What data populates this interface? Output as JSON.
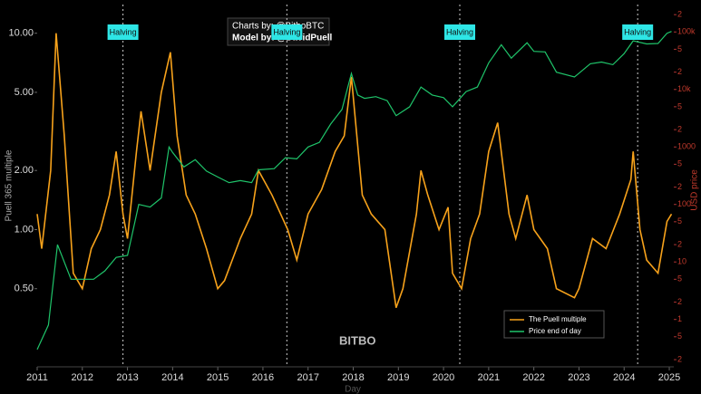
{
  "chart_data": {
    "type": "line",
    "credits": [
      "Charts by: @BitboBTC",
      "Model by: @DavidPuell"
    ],
    "watermark": "BITBO",
    "xlabel": "Day",
    "ylabel": "Puell 365 multiple",
    "y2label": "USD price",
    "log_y": true,
    "log_y2": true,
    "legend": "bottom-right",
    "xlim": [
      2011,
      2025.1
    ],
    "xticks": [
      2011,
      2012,
      2013,
      2014,
      2015,
      2016,
      2017,
      2018,
      2019,
      2020,
      2021,
      2022,
      2023,
      2024,
      2025
    ],
    "ylim": [
      0.2,
      14
    ],
    "yticks": [
      {
        "value": 0.5,
        "label": "0.50"
      },
      {
        "value": 1,
        "label": "1.00"
      },
      {
        "value": 2,
        "label": "2.00"
      },
      {
        "value": 5,
        "label": "5.00"
      },
      {
        "value": 10,
        "label": "10.00"
      }
    ],
    "y2lim": [
      0.15,
      300000
    ],
    "y2ticks": [
      {
        "value": 0.2,
        "label": "2"
      },
      {
        "value": 0.5,
        "label": "5"
      },
      1,
      {
        "value": 2,
        "label": "2"
      },
      {
        "value": 5,
        "label": "5"
      },
      10,
      {
        "value": 20,
        "label": "2"
      },
      {
        "value": 50,
        "label": "5"
      },
      100,
      {
        "value": 200,
        "label": "2"
      },
      {
        "value": 500,
        "label": "5"
      },
      1000,
      {
        "value": 2000,
        "label": "2"
      },
      {
        "value": 5000,
        "label": "5"
      },
      {
        "value": 10000,
        "label": "10k"
      },
      {
        "value": 20000,
        "label": "2"
      },
      {
        "value": 50000,
        "label": "5"
      },
      {
        "value": 100000,
        "label": "100k"
      },
      {
        "value": 200000,
        "label": "2"
      }
    ],
    "annotations": [
      {
        "x": 2012.9,
        "label": "Halving"
      },
      {
        "x": 2016.53,
        "label": "Halving"
      },
      {
        "x": 2020.36,
        "label": "Halving"
      },
      {
        "x": 2024.3,
        "label": "Halving"
      }
    ],
    "series": [
      {
        "name": "The Puell multiple",
        "color": "#f7a21b",
        "x": [
          2011.0,
          2011.1,
          2011.3,
          2011.42,
          2011.6,
          2011.8,
          2012.0,
          2012.2,
          2012.4,
          2012.6,
          2012.75,
          2012.9,
          2013.0,
          2013.2,
          2013.3,
          2013.5,
          2013.75,
          2013.95,
          2014.1,
          2014.3,
          2014.5,
          2014.75,
          2015.0,
          2015.15,
          2015.5,
          2015.75,
          2015.9,
          2016.2,
          2016.55,
          2016.75,
          2017.0,
          2017.3,
          2017.6,
          2017.8,
          2017.96,
          2018.2,
          2018.4,
          2018.7,
          2018.95,
          2019.1,
          2019.4,
          2019.5,
          2019.65,
          2019.9,
          2020.1,
          2020.2,
          2020.4,
          2020.6,
          2020.8,
          2021.0,
          2021.2,
          2021.45,
          2021.6,
          2021.85,
          2022.0,
          2022.3,
          2022.5,
          2022.9,
          2023.0,
          2023.3,
          2023.6,
          2023.9,
          2024.15,
          2024.2,
          2024.35,
          2024.5,
          2024.75,
          2024.95,
          2025.05
        ],
        "values": [
          1.2,
          0.8,
          2,
          10,
          3,
          0.6,
          0.5,
          0.8,
          1,
          1.5,
          2.5,
          1.2,
          0.9,
          2.5,
          4,
          2,
          5,
          8,
          3,
          1.5,
          1.2,
          0.8,
          0.5,
          0.55,
          0.9,
          1.2,
          2,
          1.5,
          1,
          0.7,
          1.2,
          1.6,
          2.5,
          3,
          6,
          1.5,
          1.2,
          1,
          0.4,
          0.5,
          1.2,
          2,
          1.5,
          1,
          1.3,
          0.6,
          0.5,
          0.9,
          1.2,
          2.5,
          3.5,
          1.2,
          0.9,
          1.5,
          1,
          0.8,
          0.5,
          0.45,
          0.5,
          0.9,
          0.8,
          1.2,
          1.8,
          2.5,
          1,
          0.7,
          0.6,
          1.1,
          1.2
        ]
      },
      {
        "name": "Price end of day",
        "color": "#1fc46a",
        "axis": "y2",
        "x": [
          2011.0,
          2011.25,
          2011.45,
          2011.75,
          2012.0,
          2012.25,
          2012.5,
          2012.75,
          2013.0,
          2013.25,
          2013.5,
          2013.75,
          2013.92,
          2014.0,
          2014.25,
          2014.5,
          2014.75,
          2015.0,
          2015.25,
          2015.5,
          2015.75,
          2015.9,
          2016.25,
          2016.5,
          2016.75,
          2017.0,
          2017.25,
          2017.5,
          2017.75,
          2017.96,
          2018.1,
          2018.25,
          2018.5,
          2018.75,
          2018.95,
          2019.25,
          2019.5,
          2019.75,
          2020.0,
          2020.2,
          2020.5,
          2020.75,
          2021.0,
          2021.28,
          2021.5,
          2021.85,
          2022.0,
          2022.25,
          2022.5,
          2022.9,
          2023.25,
          2023.5,
          2023.75,
          2024.0,
          2024.2,
          2024.5,
          2024.75,
          2024.95,
          2025.05
        ],
        "values": [
          0.3,
          0.8,
          20,
          5,
          5,
          5,
          7,
          12,
          13,
          100,
          90,
          130,
          1000,
          800,
          450,
          600,
          380,
          300,
          240,
          260,
          240,
          400,
          420,
          650,
          620,
          1000,
          1200,
          2500,
          4500,
          19000,
          8000,
          7000,
          7500,
          6400,
          3500,
          5000,
          11000,
          8000,
          7200,
          5000,
          9200,
          11000,
          29000,
          60000,
          35000,
          65000,
          46000,
          45000,
          20000,
          16500,
          28000,
          30000,
          27000,
          42000,
          70000,
          62000,
          63000,
          95000,
          102000
        ]
      }
    ]
  }
}
